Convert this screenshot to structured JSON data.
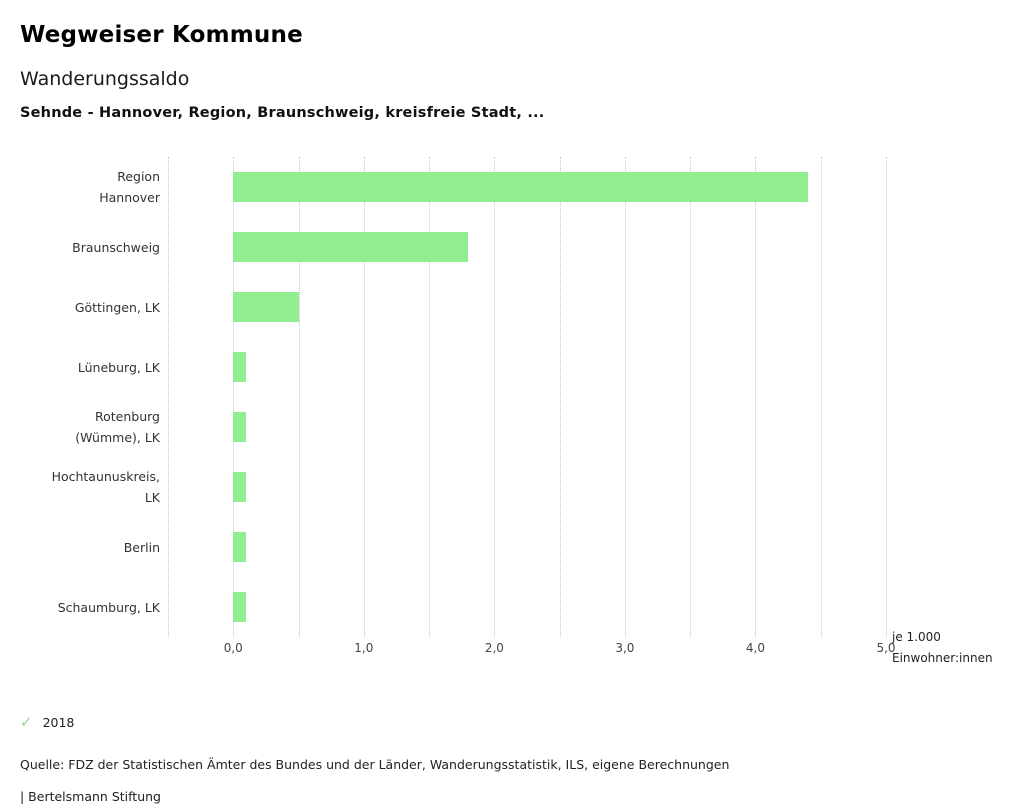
{
  "header": {
    "title": "Wegweiser Kommune",
    "subtitle": "Wanderungssaldo",
    "series_title": "Sehnde - Hannover, Region, Braunschweig, kreisfreie Stadt, ..."
  },
  "chart_data": {
    "type": "bar",
    "orientation": "horizontal",
    "title": "Wanderungssaldo",
    "categories": [
      [
        "Region",
        "Hannover"
      ],
      [
        "Braunschweig"
      ],
      [
        "Göttingen, LK"
      ],
      [
        "Lüneburg, LK"
      ],
      [
        "Rotenburg",
        "(Wümme), LK"
      ],
      [
        "Hochtaunuskreis,",
        "LK"
      ],
      [
        "Berlin"
      ],
      [
        "Schaumburg, LK"
      ]
    ],
    "values": [
      4.4,
      1.8,
      0.5,
      0.1,
      0.1,
      0.1,
      0.1,
      0.1
    ],
    "xlim": [
      -0.5,
      5.0
    ],
    "grid_step": 0.5,
    "x_tick_values": [
      0,
      1,
      2,
      3,
      4,
      5
    ],
    "x_tick_labels": [
      "0,0",
      "1,0",
      "2,0",
      "3,0",
      "4,0",
      "5,0"
    ],
    "bar_color": "#90ee90",
    "grid": "dotted-vertical",
    "unit_label_line1": "je 1.000",
    "unit_label_line2": "Einwohner:innen",
    "legend": [
      {
        "label": "2018",
        "glyph": "✓",
        "color": "#8fd694"
      }
    ]
  },
  "footer": {
    "source": "Quelle: FDZ der Statistischen Ämter des Bundes und der Länder, Wanderungsstatistik, ILS, eigene Berechnungen",
    "attribution": "| Bertelsmann Stiftung"
  }
}
